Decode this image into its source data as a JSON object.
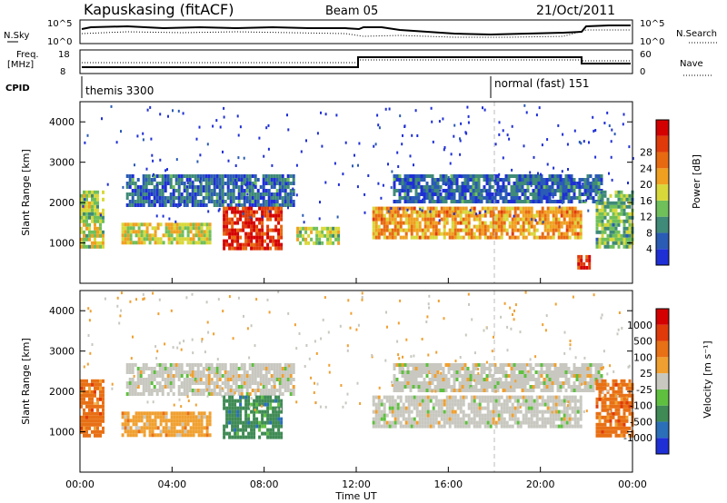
{
  "header": {
    "station": "Kapuskasing (fitACF)",
    "beam": "Beam 05",
    "date": "21/Oct/2011"
  },
  "strips": {
    "nsky_label": "N.Sky",
    "nsky_ticks": [
      "10^5",
      "10^0"
    ],
    "nsearch_label": "N.Search",
    "nsearch_ticks": [
      "10^5",
      "10^0"
    ],
    "freq_label": "Freq.",
    "freq_unit": "[MHz]",
    "freq_ticks": [
      "18",
      "8"
    ],
    "nave_label": "Nave",
    "nave_ticks": [
      "60",
      "0"
    ],
    "cpid_label": "CPID",
    "cpid_modes": [
      {
        "name": "themis 3300",
        "start_hour": 0,
        "end_hour": 18
      },
      {
        "name": "normal (fast) 151",
        "start_hour": 18,
        "end_hour": 24
      }
    ]
  },
  "axes": {
    "ylabel": "Slant Range [km]",
    "xlabel": "Time UT",
    "x_ticks": [
      "00:00",
      "04:00",
      "08:00",
      "12:00",
      "16:00",
      "20:00",
      "00:00"
    ],
    "y_ticks": [
      "1000",
      "2000",
      "3000",
      "4000"
    ]
  },
  "chart_data": [
    {
      "type": "heatmap",
      "name": "power-panel",
      "x_range_hours": [
        0,
        24
      ],
      "y_range_km": [
        0,
        4500
      ],
      "colorbar": {
        "label": "Power [dB]",
        "ticks": [
          "4",
          "8",
          "12",
          "16",
          "20",
          "24",
          "28"
        ],
        "colors": [
          "#1f2fd6",
          "#2a5bb5",
          "#3f8a78",
          "#6fbf5a",
          "#d8d83a",
          "#f0a020",
          "#e86a10",
          "#e03a0a",
          "#d40000"
        ]
      },
      "regions": [
        {
          "t0": 0.0,
          "t1": 1.0,
          "r0": 900,
          "r1": 2300,
          "level": 0.45
        },
        {
          "t0": 1.8,
          "t1": 5.6,
          "r0": 1000,
          "r1": 1500,
          "level": 0.5
        },
        {
          "t0": 2.0,
          "t1": 9.3,
          "r0": 1900,
          "r1": 2700,
          "level": 0.15
        },
        {
          "t0": 6.2,
          "t1": 8.8,
          "r0": 900,
          "r1": 1900,
          "level": 0.9
        },
        {
          "t0": 9.4,
          "t1": 11.2,
          "r0": 1000,
          "r1": 1400,
          "level": 0.45
        },
        {
          "t0": 12.7,
          "t1": 21.8,
          "r0": 1100,
          "r1": 1900,
          "level": 0.65
        },
        {
          "t0": 13.6,
          "t1": 22.6,
          "r0": 2000,
          "r1": 2700,
          "level": 0.15
        },
        {
          "t0": 21.6,
          "t1": 22.1,
          "r0": 400,
          "r1": 700,
          "level": 0.95
        },
        {
          "t0": 22.4,
          "t1": 24.0,
          "r0": 900,
          "r1": 2300,
          "level": 0.35
        }
      ]
    },
    {
      "type": "heatmap",
      "name": "velocity-panel",
      "x_range_hours": [
        0,
        24
      ],
      "y_range_km": [
        0,
        4500
      ],
      "colorbar": {
        "label": "Velocity [m s⁻¹]",
        "ticks": [
          "1000",
          "500",
          "100",
          "25",
          "-25",
          "-100",
          "-500",
          "-1000"
        ],
        "colors": [
          "#1f2fd6",
          "#2a6fb8",
          "#3f8a55",
          "#5fc040",
          "#c8c8c0",
          "#f0a030",
          "#e87015",
          "#e03a0a",
          "#d40000"
        ]
      },
      "regions": [
        {
          "t0": 0.0,
          "t1": 1.0,
          "r0": 900,
          "r1": 2300,
          "color": 6
        },
        {
          "t0": 1.8,
          "t1": 5.6,
          "r0": 900,
          "r1": 1500,
          "color": 5
        },
        {
          "t0": 2.0,
          "t1": 9.3,
          "r0": 1900,
          "r1": 2700,
          "color": 4
        },
        {
          "t0": 6.2,
          "t1": 8.8,
          "r0": 900,
          "r1": 1900,
          "color": 2
        },
        {
          "t0": 12.7,
          "t1": 21.8,
          "r0": 1100,
          "r1": 1900,
          "color": 4
        },
        {
          "t0": 13.6,
          "t1": 22.6,
          "r0": 2000,
          "r1": 2700,
          "color": 4
        },
        {
          "t0": 22.4,
          "t1": 24.0,
          "r0": 900,
          "r1": 2300,
          "color": 6
        }
      ]
    }
  ]
}
